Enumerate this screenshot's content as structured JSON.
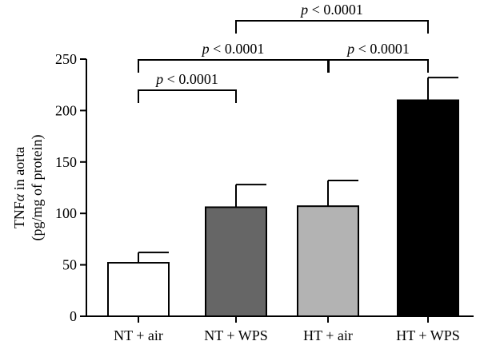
{
  "chart_data": {
    "type": "bar",
    "categories": [
      "NT + air",
      "NT + WPS",
      "HT + air",
      "HT + WPS"
    ],
    "values": [
      52,
      106,
      107,
      210
    ],
    "errors": [
      10,
      22,
      25,
      22
    ],
    "colors": [
      "#ffffff",
      "#666666",
      "#b3b3b3",
      "#000000"
    ],
    "ylabel_line1_prefix": "TNF",
    "ylabel_line1_greek": "α",
    "ylabel_line1_suffix": " in aorta",
    "ylabel_line2": "(pg/mg of protein)",
    "ylim": [
      0,
      250
    ],
    "yticks": [
      0,
      50,
      100,
      150,
      200,
      250
    ],
    "ytick_labels": [
      "0",
      "50",
      "100",
      "150",
      "200",
      "250"
    ],
    "grid": false,
    "legend": "none",
    "annotations": [
      {
        "from": 0,
        "to": 1,
        "p_symbol": "p",
        "p_rest": " < 0.0001"
      },
      {
        "from": 0,
        "to": 2,
        "p_symbol": "p",
        "p_rest": " < 0.0001"
      },
      {
        "from": 2,
        "to": 3,
        "p_symbol": "p",
        "p_rest": " < 0.0001"
      },
      {
        "from": 1,
        "to": 3,
        "p_symbol": "p",
        "p_rest": " < 0.0001"
      }
    ]
  }
}
